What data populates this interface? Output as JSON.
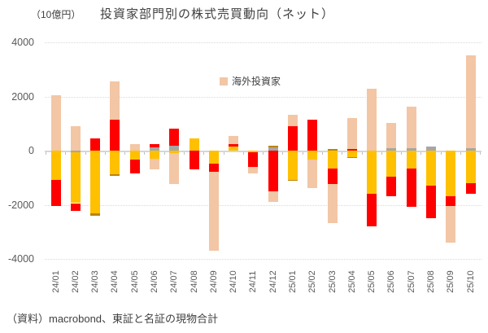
{
  "header": {
    "unit_label": "（10億円）",
    "title": "投資家部門別の株式売買動向（ネット）"
  },
  "legend": {
    "items": [
      {
        "label": "海外投資家",
        "color": "#f3c6a5"
      }
    ]
  },
  "footer": {
    "source_note": "（資料）macrobond、東証と名証の現物合計"
  },
  "y_axis": {
    "tick_labels": [
      "4000",
      "2000",
      "0",
      "-2000",
      "-4000"
    ],
    "min": -4000,
    "max": 4000
  },
  "chart_data": {
    "type": "bar",
    "stacked": true,
    "title": "投資家部門別の株式売買動向（ネット）",
    "unit": "10億円",
    "ylim": [
      -4000,
      4000
    ],
    "grid": "dotted-horizontal",
    "legend_position": "top-center-inside",
    "legend_visible_series": [
      "海外投資家"
    ],
    "categories": [
      "24/01",
      "24/02",
      "24/03",
      "24/04",
      "24/05",
      "24/06",
      "24/07",
      "24/08",
      "24/09",
      "24/10",
      "24/11",
      "24/12",
      "25/01",
      "25/02",
      "25/03",
      "25/04",
      "25/05",
      "25/06",
      "25/07",
      "25/08",
      "25/09",
      "25/10"
    ],
    "series": [
      {
        "name": "unlabeled-gray",
        "color": "#a6a6a6",
        "values": [
          0,
          -60,
          0,
          0,
          0,
          130,
          190,
          0,
          0,
          0,
          0,
          120,
          0,
          0,
          0,
          0,
          0,
          100,
          90,
          150,
          0,
          90
        ]
      },
      {
        "name": "unlabeled-yellow",
        "color": "#ffc000",
        "values": [
          -1070,
          -1880,
          -2310,
          -880,
          -330,
          -290,
          -90,
          460,
          -470,
          150,
          -70,
          0,
          -1070,
          -320,
          -660,
          -230,
          -1590,
          -970,
          -660,
          -1290,
          -1690,
          -1190
        ]
      },
      {
        "name": "unlabeled-red",
        "color": "#ff0000",
        "values": [
          -970,
          -300,
          440,
          1140,
          -510,
          120,
          630,
          -700,
          -320,
          100,
          -540,
          -1490,
          900,
          1130,
          -580,
          50,
          -1200,
          -720,
          -1430,
          -1200,
          -350,
          -400
        ]
      },
      {
        "name": "海外投資家",
        "color": "#f3c6a5",
        "values": [
          2050,
          900,
          0,
          1410,
          250,
          -400,
          -1150,
          0,
          -2900,
          300,
          -230,
          -400,
          420,
          -1060,
          -1450,
          1150,
          2300,
          920,
          1530,
          0,
          -1350,
          3420
        ]
      },
      {
        "name": "unlabeled-olive",
        "color": "#b8860b",
        "values": [
          0,
          0,
          -100,
          -60,
          0,
          0,
          0,
          0,
          0,
          0,
          0,
          60,
          -50,
          0,
          50,
          -50,
          0,
          0,
          0,
          0,
          0,
          0
        ]
      }
    ]
  }
}
